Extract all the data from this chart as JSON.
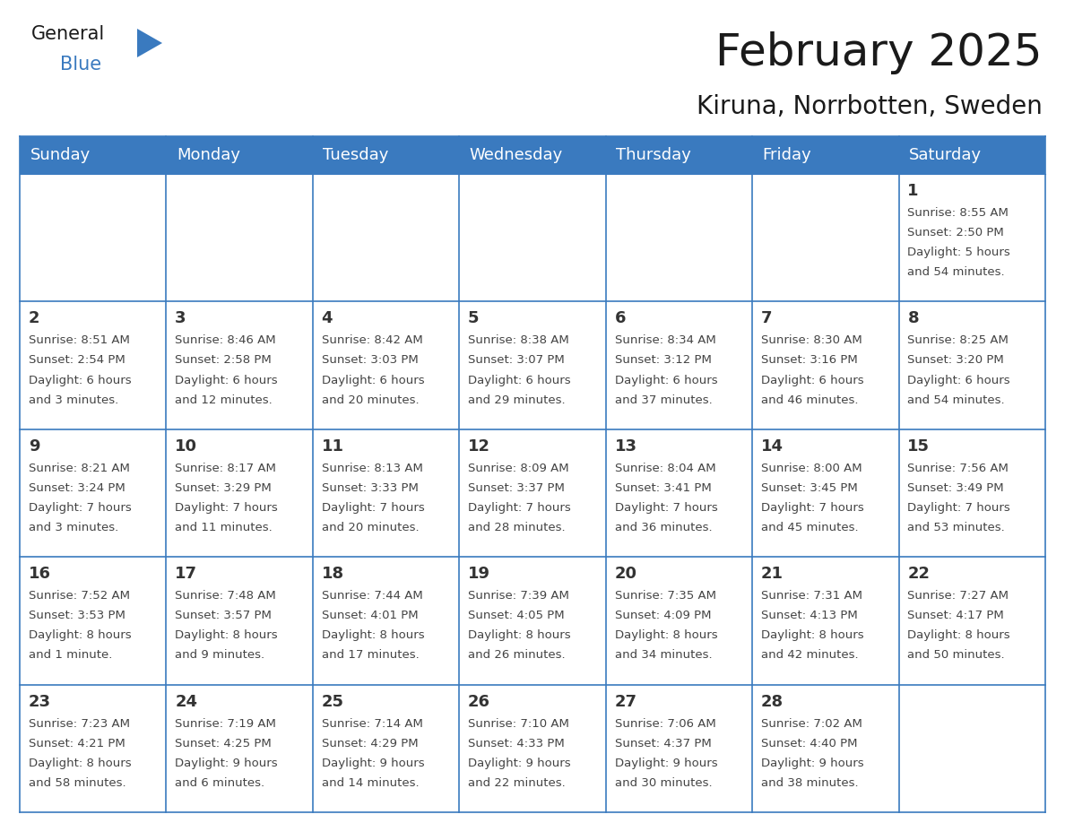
{
  "title": "February 2025",
  "subtitle": "Kiruna, Norrbotten, Sweden",
  "header_color": "#3a7abf",
  "header_text_color": "#ffffff",
  "border_color": "#3a7abf",
  "day_names": [
    "Sunday",
    "Monday",
    "Tuesday",
    "Wednesday",
    "Thursday",
    "Friday",
    "Saturday"
  ],
  "days": [
    {
      "day": 1,
      "col": 6,
      "row": 0,
      "sunrise": "8:55 AM",
      "sunset": "2:50 PM",
      "daylight": "5 hours and 54 minutes."
    },
    {
      "day": 2,
      "col": 0,
      "row": 1,
      "sunrise": "8:51 AM",
      "sunset": "2:54 PM",
      "daylight": "6 hours and 3 minutes."
    },
    {
      "day": 3,
      "col": 1,
      "row": 1,
      "sunrise": "8:46 AM",
      "sunset": "2:58 PM",
      "daylight": "6 hours and 12 minutes."
    },
    {
      "day": 4,
      "col": 2,
      "row": 1,
      "sunrise": "8:42 AM",
      "sunset": "3:03 PM",
      "daylight": "6 hours and 20 minutes."
    },
    {
      "day": 5,
      "col": 3,
      "row": 1,
      "sunrise": "8:38 AM",
      "sunset": "3:07 PM",
      "daylight": "6 hours and 29 minutes."
    },
    {
      "day": 6,
      "col": 4,
      "row": 1,
      "sunrise": "8:34 AM",
      "sunset": "3:12 PM",
      "daylight": "6 hours and 37 minutes."
    },
    {
      "day": 7,
      "col": 5,
      "row": 1,
      "sunrise": "8:30 AM",
      "sunset": "3:16 PM",
      "daylight": "6 hours and 46 minutes."
    },
    {
      "day": 8,
      "col": 6,
      "row": 1,
      "sunrise": "8:25 AM",
      "sunset": "3:20 PM",
      "daylight": "6 hours and 54 minutes."
    },
    {
      "day": 9,
      "col": 0,
      "row": 2,
      "sunrise": "8:21 AM",
      "sunset": "3:24 PM",
      "daylight": "7 hours and 3 minutes."
    },
    {
      "day": 10,
      "col": 1,
      "row": 2,
      "sunrise": "8:17 AM",
      "sunset": "3:29 PM",
      "daylight": "7 hours and 11 minutes."
    },
    {
      "day": 11,
      "col": 2,
      "row": 2,
      "sunrise": "8:13 AM",
      "sunset": "3:33 PM",
      "daylight": "7 hours and 20 minutes."
    },
    {
      "day": 12,
      "col": 3,
      "row": 2,
      "sunrise": "8:09 AM",
      "sunset": "3:37 PM",
      "daylight": "7 hours and 28 minutes."
    },
    {
      "day": 13,
      "col": 4,
      "row": 2,
      "sunrise": "8:04 AM",
      "sunset": "3:41 PM",
      "daylight": "7 hours and 36 minutes."
    },
    {
      "day": 14,
      "col": 5,
      "row": 2,
      "sunrise": "8:00 AM",
      "sunset": "3:45 PM",
      "daylight": "7 hours and 45 minutes."
    },
    {
      "day": 15,
      "col": 6,
      "row": 2,
      "sunrise": "7:56 AM",
      "sunset": "3:49 PM",
      "daylight": "7 hours and 53 minutes."
    },
    {
      "day": 16,
      "col": 0,
      "row": 3,
      "sunrise": "7:52 AM",
      "sunset": "3:53 PM",
      "daylight": "8 hours and 1 minute."
    },
    {
      "day": 17,
      "col": 1,
      "row": 3,
      "sunrise": "7:48 AM",
      "sunset": "3:57 PM",
      "daylight": "8 hours and 9 minutes."
    },
    {
      "day": 18,
      "col": 2,
      "row": 3,
      "sunrise": "7:44 AM",
      "sunset": "4:01 PM",
      "daylight": "8 hours and 17 minutes."
    },
    {
      "day": 19,
      "col": 3,
      "row": 3,
      "sunrise": "7:39 AM",
      "sunset": "4:05 PM",
      "daylight": "8 hours and 26 minutes."
    },
    {
      "day": 20,
      "col": 4,
      "row": 3,
      "sunrise": "7:35 AM",
      "sunset": "4:09 PM",
      "daylight": "8 hours and 34 minutes."
    },
    {
      "day": 21,
      "col": 5,
      "row": 3,
      "sunrise": "7:31 AM",
      "sunset": "4:13 PM",
      "daylight": "8 hours and 42 minutes."
    },
    {
      "day": 22,
      "col": 6,
      "row": 3,
      "sunrise": "7:27 AM",
      "sunset": "4:17 PM",
      "daylight": "8 hours and 50 minutes."
    },
    {
      "day": 23,
      "col": 0,
      "row": 4,
      "sunrise": "7:23 AM",
      "sunset": "4:21 PM",
      "daylight": "8 hours and 58 minutes."
    },
    {
      "day": 24,
      "col": 1,
      "row": 4,
      "sunrise": "7:19 AM",
      "sunset": "4:25 PM",
      "daylight": "9 hours and 6 minutes."
    },
    {
      "day": 25,
      "col": 2,
      "row": 4,
      "sunrise": "7:14 AM",
      "sunset": "4:29 PM",
      "daylight": "9 hours and 14 minutes."
    },
    {
      "day": 26,
      "col": 3,
      "row": 4,
      "sunrise": "7:10 AM",
      "sunset": "4:33 PM",
      "daylight": "9 hours and 22 minutes."
    },
    {
      "day": 27,
      "col": 4,
      "row": 4,
      "sunrise": "7:06 AM",
      "sunset": "4:37 PM",
      "daylight": "9 hours and 30 minutes."
    },
    {
      "day": 28,
      "col": 5,
      "row": 4,
      "sunrise": "7:02 AM",
      "sunset": "4:40 PM",
      "daylight": "9 hours and 38 minutes."
    }
  ],
  "num_rows": 5,
  "num_cols": 7,
  "title_fontsize": 36,
  "subtitle_fontsize": 20,
  "header_fontsize": 13,
  "day_number_fontsize": 13,
  "cell_text_fontsize": 9.5,
  "logo_general_color": "#1a1a1a",
  "logo_blue_color": "#3a7abf",
  "logo_triangle_color": "#3a7abf"
}
